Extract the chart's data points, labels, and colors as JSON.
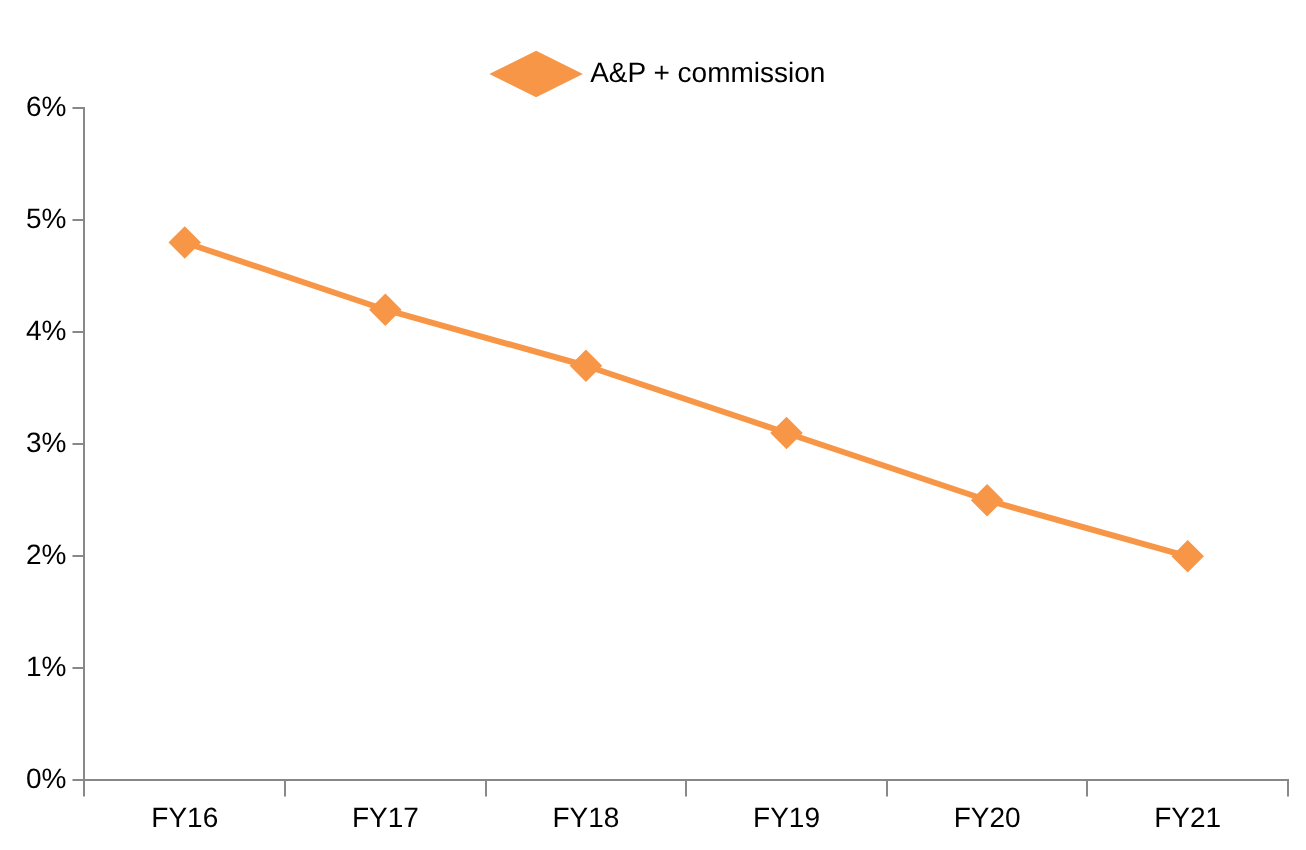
{
  "chart_data": {
    "type": "line",
    "categories": [
      "FY16",
      "FY17",
      "FY18",
      "FY19",
      "FY20",
      "FY21"
    ],
    "series": [
      {
        "name": "A&P + commission",
        "color": "#f79646",
        "values": [
          4.8,
          4.2,
          3.7,
          3.1,
          2.5,
          2.0
        ]
      }
    ],
    "ylim": [
      0,
      6
    ],
    "yticks": [
      {
        "value": 0,
        "label": "0%"
      },
      {
        "value": 1,
        "label": "1%"
      },
      {
        "value": 2,
        "label": "2%"
      },
      {
        "value": 3,
        "label": "3%"
      },
      {
        "value": 4,
        "label": "4%"
      },
      {
        "value": 5,
        "label": "5%"
      },
      {
        "value": 6,
        "label": "6%"
      }
    ],
    "legend": "top",
    "marker": "diamond",
    "line_style": "solid"
  }
}
